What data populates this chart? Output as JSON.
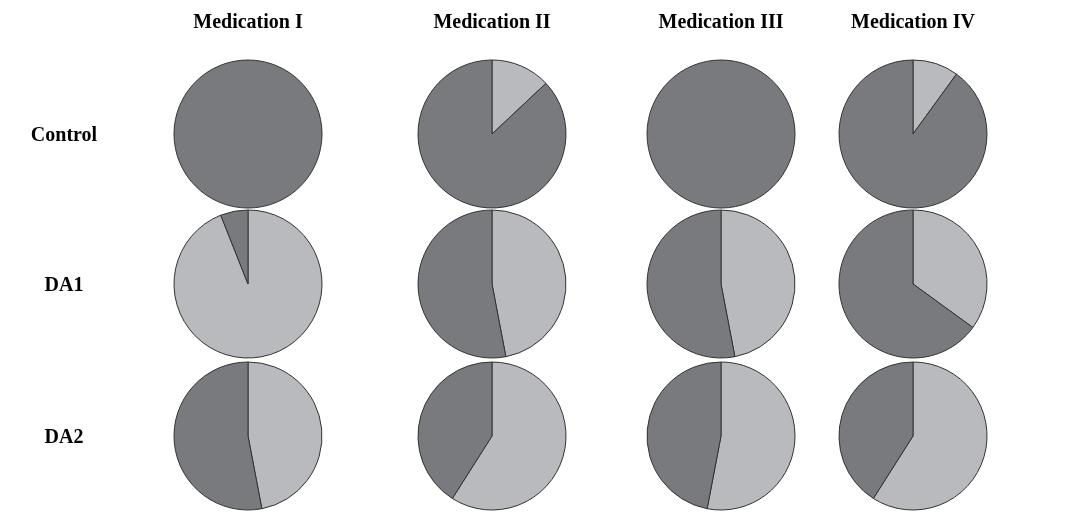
{
  "chart_data": [
    {
      "type": "pie",
      "title": "Medication I",
      "ylabel": "Control",
      "categories": [
        null,
        null
      ],
      "values": [
        0,
        100
      ],
      "colors": [
        "#b9babd",
        "#797a7e"
      ]
    },
    {
      "type": "pie",
      "title": "Medication II",
      "categories": [
        null,
        null
      ],
      "values": [
        13,
        87
      ],
      "colors": [
        "#b9babd",
        "#797a7e"
      ]
    },
    {
      "type": "pie",
      "title": "Medication III",
      "categories": [
        null,
        null
      ],
      "values": [
        0,
        100
      ],
      "colors": [
        "#b9babd",
        "#797a7e"
      ]
    },
    {
      "type": "pie",
      "title": "Medication IV",
      "categories": [
        null,
        null
      ],
      "values": [
        10,
        90
      ],
      "colors": [
        "#b9babd",
        "#797a7e"
      ]
    },
    {
      "type": "pie",
      "ylabel": "DA1",
      "categories": [
        null,
        null
      ],
      "values": [
        94,
        6
      ],
      "colors": [
        "#b9babd",
        "#797a7e"
      ]
    },
    {
      "type": "pie",
      "categories": [
        null,
        null
      ],
      "values": [
        47,
        53
      ],
      "colors": [
        "#b9babd",
        "#797a7e"
      ]
    },
    {
      "type": "pie",
      "categories": [
        null,
        null
      ],
      "values": [
        47,
        53
      ],
      "colors": [
        "#b9babd",
        "#797a7e"
      ]
    },
    {
      "type": "pie",
      "categories": [
        null,
        null
      ],
      "values": [
        35,
        65
      ],
      "colors": [
        "#b9babd",
        "#797a7e"
      ]
    },
    {
      "type": "pie",
      "ylabel": "DA2",
      "categories": [
        null,
        null
      ],
      "values": [
        47,
        53
      ],
      "colors": [
        "#b9babd",
        "#797a7e"
      ]
    },
    {
      "type": "pie",
      "categories": [
        null,
        null
      ],
      "values": [
        59,
        41
      ],
      "colors": [
        "#b9babd",
        "#797a7e"
      ]
    },
    {
      "type": "pie",
      "categories": [
        null,
        null
      ],
      "values": [
        53,
        47
      ],
      "colors": [
        "#b9babd",
        "#797a7e"
      ]
    },
    {
      "type": "pie",
      "categories": [
        null,
        null
      ],
      "values": [
        59,
        41
      ],
      "colors": [
        "#b9babd",
        "#797a7e"
      ]
    }
  ]
}
